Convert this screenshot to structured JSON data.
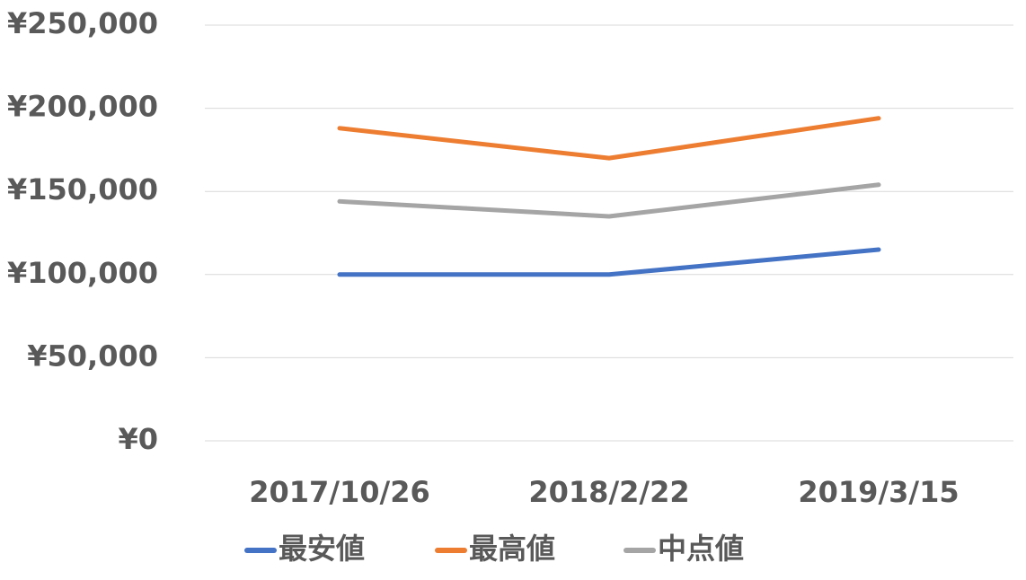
{
  "chart_data": {
    "type": "line",
    "categories": [
      "2017/10/26",
      "2018/2/22",
      "2019/3/15"
    ],
    "series": [
      {
        "name": "最安値",
        "color": "#4472c4",
        "values": [
          100000,
          100000,
          115000
        ]
      },
      {
        "name": "最高値",
        "color": "#ed7d31",
        "values": [
          188000,
          170000,
          194000
        ]
      },
      {
        "name": "中点値",
        "color": "#a5a5a5",
        "values": [
          144000,
          135000,
          154000
        ]
      }
    ],
    "ylim": [
      0,
      250000
    ],
    "yticks": [
      {
        "value": 0,
        "label": "¥0"
      },
      {
        "value": 50000,
        "label": "¥50,000"
      },
      {
        "value": 100000,
        "label": "¥100,000"
      },
      {
        "value": 150000,
        "label": "¥150,000"
      },
      {
        "value": 200000,
        "label": "¥200,000"
      },
      {
        "value": 250000,
        "label": "¥250,000"
      }
    ],
    "grid": true,
    "legend": "bottom"
  }
}
